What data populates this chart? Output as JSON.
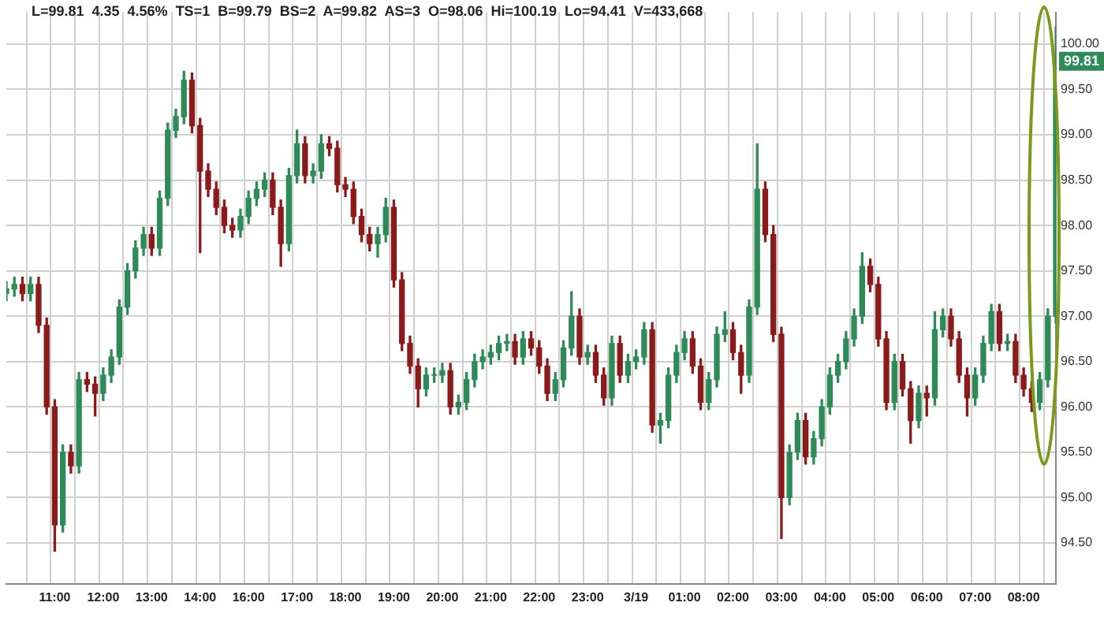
{
  "chart_data": {
    "type": "candlestick",
    "title": "L=99.81  4.35  4.56%  TS=1  B=99.79  BS=2  A=99.82  AS=3  O=98.06  Hi=100.19  Lo=94.41  V=433,668",
    "categories": [
      null,
      null,
      null,
      null,
      null,
      null,
      "11:00",
      null,
      null,
      null,
      null,
      null,
      "12:00",
      null,
      null,
      null,
      null,
      null,
      "13:00",
      null,
      null,
      null,
      null,
      null,
      "14:00",
      null,
      null,
      null,
      null,
      null,
      "16:00",
      null,
      null,
      null,
      null,
      null,
      "17:00",
      null,
      null,
      null,
      null,
      null,
      "18:00",
      null,
      null,
      null,
      null,
      null,
      "19:00",
      null,
      null,
      null,
      null,
      null,
      "20:00",
      null,
      null,
      null,
      null,
      null,
      "21:00",
      null,
      null,
      null,
      null,
      null,
      "22:00",
      null,
      null,
      null,
      null,
      null,
      "23:00",
      null,
      null,
      null,
      null,
      null,
      "3/19",
      null,
      null,
      null,
      null,
      null,
      "01:00",
      null,
      null,
      null,
      null,
      null,
      "02:00",
      null,
      null,
      null,
      null,
      null,
      "03:00",
      null,
      null,
      null,
      null,
      null,
      "04:00",
      null,
      null,
      null,
      null,
      null,
      "05:00",
      null,
      null,
      null,
      null,
      null,
      "06:00",
      null,
      null,
      null,
      null,
      null,
      "07:00",
      null,
      null,
      null,
      null,
      null,
      "08:00",
      null,
      null,
      null,
      null
    ],
    "ohlc": [
      [
        97.25,
        97.38,
        97.17,
        97.3
      ],
      [
        97.3,
        97.43,
        97.22,
        97.35
      ],
      [
        97.35,
        97.43,
        97.17,
        97.25
      ],
      [
        97.25,
        97.43,
        97.17,
        97.35
      ],
      [
        97.35,
        97.43,
        96.82,
        96.9
      ],
      [
        96.9,
        96.98,
        95.92,
        96.0
      ],
      [
        96.0,
        96.08,
        94.41,
        94.7
      ],
      [
        94.7,
        95.58,
        94.62,
        95.5
      ],
      [
        95.5,
        95.58,
        95.27,
        95.35
      ],
      [
        95.35,
        96.38,
        95.27,
        96.3
      ],
      [
        96.3,
        96.38,
        96.17,
        96.25
      ],
      [
        96.25,
        96.33,
        95.9,
        96.15
      ],
      [
        96.15,
        96.43,
        96.07,
        96.35
      ],
      [
        96.35,
        96.63,
        96.27,
        96.55
      ],
      [
        96.55,
        97.18,
        96.47,
        97.1
      ],
      [
        97.1,
        97.58,
        97.02,
        97.5
      ],
      [
        97.5,
        97.83,
        97.42,
        97.75
      ],
      [
        97.75,
        97.98,
        97.67,
        97.9
      ],
      [
        97.9,
        97.98,
        97.67,
        97.75
      ],
      [
        97.75,
        98.38,
        97.67,
        98.3
      ],
      [
        98.3,
        99.13,
        98.22,
        99.05
      ],
      [
        99.05,
        99.28,
        98.97,
        99.2
      ],
      [
        99.2,
        99.7,
        99.12,
        99.6
      ],
      [
        99.6,
        99.68,
        99.02,
        99.1
      ],
      [
        99.1,
        99.18,
        97.7,
        98.6
      ],
      [
        98.6,
        98.68,
        98.32,
        98.4
      ],
      [
        98.4,
        98.48,
        98.12,
        98.2
      ],
      [
        98.2,
        98.28,
        97.92,
        98.0
      ],
      [
        98.0,
        98.08,
        97.87,
        97.95
      ],
      [
        97.95,
        98.18,
        97.87,
        98.1
      ],
      [
        98.1,
        98.38,
        98.02,
        98.3
      ],
      [
        98.3,
        98.48,
        98.22,
        98.4
      ],
      [
        98.4,
        98.58,
        98.32,
        98.5
      ],
      [
        98.5,
        98.58,
        98.12,
        98.2
      ],
      [
        98.2,
        98.28,
        97.55,
        97.8
      ],
      [
        97.8,
        98.63,
        97.72,
        98.55
      ],
      [
        98.55,
        99.05,
        98.47,
        98.9
      ],
      [
        98.9,
        98.98,
        98.47,
        98.55
      ],
      [
        98.55,
        98.68,
        98.47,
        98.6
      ],
      [
        98.6,
        99.0,
        98.52,
        98.9
      ],
      [
        98.9,
        98.98,
        98.77,
        98.85
      ],
      [
        98.85,
        98.93,
        98.37,
        98.45
      ],
      [
        98.45,
        98.53,
        98.32,
        98.4
      ],
      [
        98.4,
        98.48,
        98.02,
        98.1
      ],
      [
        98.1,
        98.18,
        97.82,
        97.9
      ],
      [
        97.9,
        97.98,
        97.72,
        97.8
      ],
      [
        97.8,
        97.98,
        97.65,
        97.9
      ],
      [
        97.9,
        98.3,
        97.82,
        98.2
      ],
      [
        98.2,
        98.28,
        97.32,
        97.4
      ],
      [
        97.4,
        97.48,
        96.62,
        96.7
      ],
      [
        96.7,
        96.78,
        96.37,
        96.45
      ],
      [
        96.45,
        96.53,
        96.0,
        96.2
      ],
      [
        96.2,
        96.43,
        96.12,
        96.35
      ],
      [
        96.35,
        96.43,
        96.27,
        96.35
      ],
      [
        96.35,
        96.48,
        96.27,
        96.4
      ],
      [
        96.4,
        96.48,
        95.92,
        96.0
      ],
      [
        96.0,
        96.13,
        95.92,
        96.05
      ],
      [
        96.05,
        96.38,
        95.97,
        96.3
      ],
      [
        96.3,
        96.58,
        96.22,
        96.5
      ],
      [
        96.5,
        96.63,
        96.42,
        96.55
      ],
      [
        96.55,
        96.68,
        96.47,
        96.6
      ],
      [
        96.6,
        96.78,
        96.52,
        96.7
      ],
      [
        96.7,
        96.8,
        96.62,
        96.72
      ],
      [
        96.72,
        96.8,
        96.47,
        96.55
      ],
      [
        96.55,
        96.83,
        96.47,
        96.75
      ],
      [
        96.75,
        96.83,
        96.57,
        96.65
      ],
      [
        96.65,
        96.73,
        96.37,
        96.45
      ],
      [
        96.45,
        96.53,
        96.07,
        96.15
      ],
      [
        96.15,
        96.38,
        96.07,
        96.3
      ],
      [
        96.3,
        96.73,
        96.22,
        96.65
      ],
      [
        96.65,
        97.27,
        96.57,
        97.0
      ],
      [
        97.0,
        97.08,
        96.47,
        96.55
      ],
      [
        96.55,
        96.68,
        96.47,
        96.6
      ],
      [
        96.6,
        96.68,
        96.27,
        96.35
      ],
      [
        96.35,
        96.43,
        96.02,
        96.1
      ],
      [
        96.1,
        96.78,
        96.02,
        96.7
      ],
      [
        96.7,
        96.78,
        96.27,
        96.35
      ],
      [
        96.35,
        96.58,
        96.27,
        96.5
      ],
      [
        96.5,
        96.63,
        96.42,
        96.55
      ],
      [
        96.55,
        96.93,
        96.47,
        96.85
      ],
      [
        96.85,
        96.93,
        95.72,
        95.8
      ],
      [
        95.8,
        95.93,
        95.6,
        95.85
      ],
      [
        95.85,
        96.43,
        95.77,
        96.35
      ],
      [
        96.35,
        96.68,
        96.27,
        96.6
      ],
      [
        96.6,
        96.83,
        96.52,
        96.75
      ],
      [
        96.75,
        96.83,
        96.37,
        96.45
      ],
      [
        96.45,
        96.53,
        95.97,
        96.05
      ],
      [
        96.05,
        96.38,
        95.97,
        96.3
      ],
      [
        96.3,
        96.88,
        96.22,
        96.8
      ],
      [
        96.8,
        97.05,
        96.72,
        96.85
      ],
      [
        96.85,
        96.93,
        96.52,
        96.6
      ],
      [
        96.6,
        96.68,
        96.15,
        96.35
      ],
      [
        96.35,
        97.18,
        96.27,
        97.1
      ],
      [
        97.1,
        98.9,
        97.02,
        98.4
      ],
      [
        98.4,
        98.48,
        97.82,
        97.9
      ],
      [
        97.9,
        98.0,
        96.72,
        96.8
      ],
      [
        96.8,
        96.88,
        94.55,
        95.0
      ],
      [
        95.0,
        95.58,
        94.92,
        95.5
      ],
      [
        95.5,
        95.93,
        95.42,
        95.85
      ],
      [
        95.85,
        95.93,
        95.37,
        95.45
      ],
      [
        95.45,
        95.73,
        95.37,
        95.65
      ],
      [
        95.65,
        96.08,
        95.57,
        96.0
      ],
      [
        96.0,
        96.43,
        95.92,
        96.35
      ],
      [
        96.35,
        96.58,
        96.27,
        96.5
      ],
      [
        96.5,
        96.83,
        96.42,
        96.75
      ],
      [
        96.75,
        97.08,
        96.67,
        97.0
      ],
      [
        97.0,
        97.7,
        96.92,
        97.55
      ],
      [
        97.55,
        97.63,
        97.27,
        97.35
      ],
      [
        97.35,
        97.43,
        96.67,
        96.75
      ],
      [
        96.75,
        96.83,
        95.97,
        96.05
      ],
      [
        96.05,
        96.58,
        95.97,
        96.5
      ],
      [
        96.5,
        96.58,
        96.12,
        96.2
      ],
      [
        96.2,
        96.28,
        95.6,
        95.85
      ],
      [
        95.85,
        96.23,
        95.77,
        96.15
      ],
      [
        96.15,
        96.23,
        95.9,
        96.1
      ],
      [
        96.1,
        97.05,
        96.02,
        96.85
      ],
      [
        96.85,
        97.08,
        96.77,
        97.0
      ],
      [
        97.0,
        97.08,
        96.67,
        96.75
      ],
      [
        96.75,
        96.83,
        96.27,
        96.35
      ],
      [
        96.35,
        96.43,
        95.9,
        96.1
      ],
      [
        96.1,
        96.43,
        96.02,
        96.35
      ],
      [
        96.35,
        96.78,
        96.27,
        96.7
      ],
      [
        96.7,
        97.13,
        96.62,
        97.05
      ],
      [
        97.05,
        97.13,
        96.62,
        96.7
      ],
      [
        96.7,
        96.8,
        96.62,
        96.72
      ],
      [
        96.72,
        96.8,
        96.27,
        96.35
      ],
      [
        96.35,
        96.43,
        96.12,
        96.2
      ],
      [
        96.2,
        96.28,
        95.95,
        96.05
      ],
      [
        96.05,
        96.38,
        95.97,
        96.3
      ],
      [
        96.3,
        97.08,
        96.22,
        97.0
      ],
      [
        97.0,
        100.19,
        96.92,
        99.81
      ]
    ],
    "colors": [
      "#2e8b57",
      "#2e8b57",
      "#8b1a1a",
      "#2e8b57",
      "#8b1a1a",
      "#8b1a1a",
      "#8b1a1a",
      "#2e8b57",
      "#8b1a1a",
      "#2e8b57",
      "#8b1a1a",
      "#8b1a1a",
      "#2e8b57",
      "#2e8b57",
      "#2e8b57",
      "#2e8b57",
      "#2e8b57",
      "#2e8b57",
      "#8b1a1a",
      "#2e8b57",
      "#2e8b57",
      "#2e8b57",
      "#2e8b57",
      "#8b1a1a",
      "#8b1a1a",
      "#8b1a1a",
      "#8b1a1a",
      "#8b1a1a",
      "#8b1a1a",
      "#2e8b57",
      "#2e8b57",
      "#2e8b57",
      "#2e8b57",
      "#8b1a1a",
      "#8b1a1a",
      "#2e8b57",
      "#2e8b57",
      "#8b1a1a",
      "#2e8b57",
      "#2e8b57",
      "#8b1a1a",
      "#8b1a1a",
      "#8b1a1a",
      "#8b1a1a",
      "#8b1a1a",
      "#8b1a1a",
      "#2e8b57",
      "#2e8b57",
      "#8b1a1a",
      "#8b1a1a",
      "#8b1a1a",
      "#8b1a1a",
      "#2e8b57",
      "#2e8b57",
      "#2e8b57",
      "#8b1a1a",
      "#2e8b57",
      "#2e8b57",
      "#2e8b57",
      "#2e8b57",
      "#2e8b57",
      "#2e8b57",
      "#2e8b57",
      "#8b1a1a",
      "#2e8b57",
      "#8b1a1a",
      "#8b1a1a",
      "#8b1a1a",
      "#2e8b57",
      "#2e8b57",
      "#2e8b57",
      "#8b1a1a",
      "#2e8b57",
      "#8b1a1a",
      "#8b1a1a",
      "#2e8b57",
      "#8b1a1a",
      "#2e8b57",
      "#2e8b57",
      "#2e8b57",
      "#8b1a1a",
      "#2e8b57",
      "#2e8b57",
      "#2e8b57",
      "#2e8b57",
      "#8b1a1a",
      "#8b1a1a",
      "#2e8b57",
      "#2e8b57",
      "#2e8b57",
      "#8b1a1a",
      "#8b1a1a",
      "#2e8b57",
      "#2e8b57",
      "#8b1a1a",
      "#8b1a1a",
      "#8b1a1a",
      "#2e8b57",
      "#2e8b57",
      "#8b1a1a",
      "#2e8b57",
      "#2e8b57",
      "#2e8b57",
      "#2e8b57",
      "#2e8b57",
      "#2e8b57",
      "#2e8b57",
      "#8b1a1a",
      "#8b1a1a",
      "#8b1a1a",
      "#2e8b57",
      "#8b1a1a",
      "#8b1a1a",
      "#2e8b57",
      "#8b1a1a",
      "#2e8b57",
      "#2e8b57",
      "#8b1a1a",
      "#8b1a1a",
      "#8b1a1a",
      "#2e8b57",
      "#2e8b57",
      "#2e8b57",
      "#8b1a1a",
      "#2e8b57",
      "#8b1a1a",
      "#8b1a1a",
      "#8b1a1a",
      "#2e8b57",
      "#2e8b57",
      "#2e8b57"
    ],
    "ylim": [
      94.05,
      100.35
    ],
    "yticks": [
      {
        "value": 94.5,
        "label": "94.50"
      },
      {
        "value": 95,
        "label": "95.00"
      },
      {
        "value": 95.5,
        "label": "95.50"
      },
      {
        "value": 96,
        "label": "96.00"
      },
      {
        "value": 96.5,
        "label": "96.50"
      },
      {
        "value": 97,
        "label": "97.00"
      },
      {
        "value": 97.5,
        "label": "97.50"
      },
      {
        "value": 98,
        "label": "98.00"
      },
      {
        "value": 98.5,
        "label": "98.50"
      },
      {
        "value": 99,
        "label": "99.00"
      },
      {
        "value": 99.5,
        "label": "99.50"
      },
      {
        "value": 100,
        "label": "100.00"
      }
    ],
    "annotations": [
      {
        "text": "99.81",
        "y": 99.81
      }
    ],
    "grid": true,
    "legend": false
  }
}
